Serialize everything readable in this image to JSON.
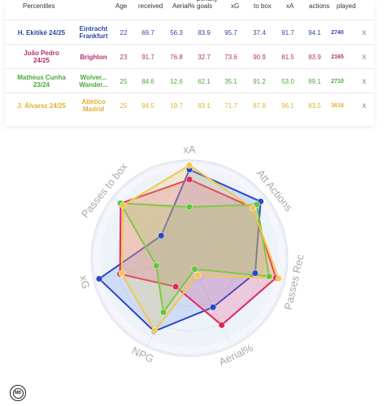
{
  "table": {
    "header": {
      "percentiles": "Percentiles",
      "age": "Age",
      "received": "received",
      "aerial": "Aerial%",
      "penalty_goals": [
        "penalty",
        "goals"
      ],
      "xg": "xG",
      "to_box": "to box",
      "xa": "xA",
      "actions": "actions",
      "played": "played"
    },
    "close_symbol": "x",
    "rows": [
      {
        "player": [
          "H. Ekitiké 24/25"
        ],
        "team": [
          "Eintracht",
          "Frankfurt"
        ],
        "color": "#2b4aa8",
        "values": [
          "22",
          "69.7",
          "56.3",
          "83.9",
          "95.7",
          "37.4",
          "91.7",
          "94.1",
          "2740"
        ]
      },
      {
        "player": [
          "João Pedro",
          "24/25"
        ],
        "team": [
          "Brighton"
        ],
        "color": "#b0306e",
        "values": [
          "23",
          "91.7",
          "76.8",
          "32.7",
          "73.6",
          "90.9",
          "81.5",
          "83.9",
          "2165"
        ]
      },
      {
        "player": [
          "Matheus Cunha",
          "23/24"
        ],
        "team": [
          "Wolver...",
          "Wander..."
        ],
        "color": "#4aa83a",
        "values": [
          "25",
          "84.6",
          "12.6",
          "62.1",
          "35.1",
          "91.2",
          "53.0",
          "89.1",
          "2710"
        ]
      },
      {
        "player": [
          "J. Álvarez 24/25"
        ],
        "team": [
          "Atlético",
          "Madrid"
        ],
        "color": "#e0b030",
        "values": [
          "25",
          "94.5",
          "19.7",
          "83.1",
          "71.7",
          "87.8",
          "96.1",
          "83.5",
          "3618"
        ]
      }
    ]
  },
  "chart_data": {
    "type": "radar",
    "axes": [
      "xA",
      "Att Actions",
      "Passes Rec",
      "Aerial%",
      "NPG",
      "xG",
      "Passes to box"
    ],
    "range": [
      0,
      100
    ],
    "rings": 4,
    "series": [
      {
        "name": "H. Ekitiké 24/25",
        "color": "#2747c8",
        "fill": "rgba(60,120,230,0.18)",
        "values": [
          91.7,
          94.1,
          69.7,
          56.3,
          83.9,
          95.7,
          37.4
        ]
      },
      {
        "name": "João Pedro 24/25",
        "color": "#e0285a",
        "fill": "rgba(230,80,140,0.25)",
        "values": [
          81.5,
          83.9,
          91.7,
          76.8,
          32.7,
          73.6,
          90.9
        ]
      },
      {
        "name": "Matheus Cunha 23/24",
        "color": "#5cc83c",
        "fill": "rgba(120,190,90,0.25)",
        "values": [
          53.0,
          89.1,
          84.6,
          12.6,
          62.1,
          35.1,
          91.2
        ]
      },
      {
        "name": "J. Álvarez 24/25",
        "color": "#f2c84a",
        "fill": "rgba(240,200,90,0.25)",
        "values": [
          96.1,
          83.5,
          94.5,
          19.7,
          83.1,
          71.7,
          87.8
        ]
      }
    ]
  },
  "logo_text": "MB"
}
